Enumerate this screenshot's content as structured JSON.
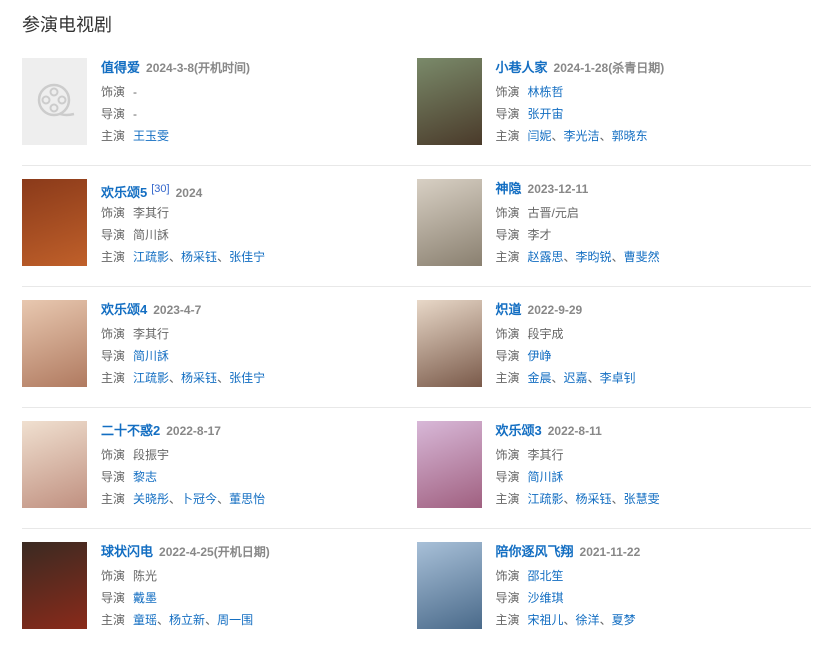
{
  "heading": "参演电视剧",
  "separator": "、",
  "items": [
    {
      "title": "值得爱",
      "date": "2024-3-8(开机时间)",
      "poster": "placeholder",
      "colors": [
        "#efefef",
        "#efefef"
      ],
      "roles": [
        {
          "label": "饰演",
          "values": [
            {
              "text": "-",
              "link": false
            }
          ]
        },
        {
          "label": "导演",
          "values": [
            {
              "text": "-",
              "link": false
            }
          ]
        },
        {
          "label": "主演",
          "values": [
            {
              "text": "王玉雯",
              "link": true
            }
          ]
        }
      ]
    },
    {
      "title": "小巷人家",
      "date": "2024-1-28(杀青日期)",
      "colors": [
        "#7a8a6a",
        "#4a3a2a"
      ],
      "roles": [
        {
          "label": "饰演",
          "values": [
            {
              "text": "林栋哲",
              "link": true
            }
          ]
        },
        {
          "label": "导演",
          "values": [
            {
              "text": "张开宙",
              "link": true
            }
          ]
        },
        {
          "label": "主演",
          "values": [
            {
              "text": "闫妮",
              "link": true
            },
            {
              "text": "李光洁",
              "link": true
            },
            {
              "text": "郭晓东",
              "link": true
            }
          ]
        }
      ]
    },
    {
      "title": "欢乐颂5",
      "sup": "[30]",
      "date": "2024",
      "colors": [
        "#8a3a1a",
        "#c0602a"
      ],
      "roles": [
        {
          "label": "饰演",
          "values": [
            {
              "text": "李其行",
              "link": false
            }
          ]
        },
        {
          "label": "导演",
          "values": [
            {
              "text": "简川訸",
              "link": false
            }
          ]
        },
        {
          "label": "主演",
          "values": [
            {
              "text": "江疏影",
              "link": true
            },
            {
              "text": "杨采钰",
              "link": true
            },
            {
              "text": "张佳宁",
              "link": true
            }
          ]
        }
      ]
    },
    {
      "title": "神隐",
      "date": "2023-12-11",
      "colors": [
        "#d8d0c4",
        "#8a8070"
      ],
      "roles": [
        {
          "label": "饰演",
          "values": [
            {
              "text": "古晋/元启",
              "link": false
            }
          ]
        },
        {
          "label": "导演",
          "values": [
            {
              "text": "李才",
              "link": false
            }
          ]
        },
        {
          "label": "主演",
          "values": [
            {
              "text": "赵露思",
              "link": true
            },
            {
              "text": "李昀锐",
              "link": true
            },
            {
              "text": "曹斐然",
              "link": true
            }
          ]
        }
      ]
    },
    {
      "title": "欢乐颂4",
      "date": "2023-4-7",
      "colors": [
        "#e8c8b0",
        "#b07a60"
      ],
      "roles": [
        {
          "label": "饰演",
          "values": [
            {
              "text": "李其行",
              "link": false
            }
          ]
        },
        {
          "label": "导演",
          "values": [
            {
              "text": "简川訸",
              "link": true
            }
          ]
        },
        {
          "label": "主演",
          "values": [
            {
              "text": "江疏影",
              "link": true
            },
            {
              "text": "杨采钰",
              "link": true
            },
            {
              "text": "张佳宁",
              "link": true
            }
          ]
        }
      ]
    },
    {
      "title": "炽道",
      "date": "2022-9-29",
      "colors": [
        "#e8d8c8",
        "#7a5a4a"
      ],
      "roles": [
        {
          "label": "饰演",
          "values": [
            {
              "text": "段宇成",
              "link": false
            }
          ]
        },
        {
          "label": "导演",
          "values": [
            {
              "text": "伊峥",
              "link": true
            }
          ]
        },
        {
          "label": "主演",
          "values": [
            {
              "text": "金晨",
              "link": true
            },
            {
              "text": "迟嘉",
              "link": true
            },
            {
              "text": "李卓钊",
              "link": true
            }
          ]
        }
      ]
    },
    {
      "title": "二十不惑2",
      "date": "2022-8-17",
      "colors": [
        "#f0e0d0",
        "#c09080"
      ],
      "roles": [
        {
          "label": "饰演",
          "values": [
            {
              "text": "段振宇",
              "link": false
            }
          ]
        },
        {
          "label": "导演",
          "values": [
            {
              "text": "黎志",
              "link": true
            }
          ]
        },
        {
          "label": "主演",
          "values": [
            {
              "text": "关晓彤",
              "link": true
            },
            {
              "text": "卜冠今",
              "link": true
            },
            {
              "text": "董思怡",
              "link": true
            }
          ]
        }
      ]
    },
    {
      "title": "欢乐颂3",
      "date": "2022-8-11",
      "colors": [
        "#d8b8d8",
        "#a06080"
      ],
      "roles": [
        {
          "label": "饰演",
          "values": [
            {
              "text": "李其行",
              "link": false
            }
          ]
        },
        {
          "label": "导演",
          "values": [
            {
              "text": "简川訸",
              "link": true
            }
          ]
        },
        {
          "label": "主演",
          "values": [
            {
              "text": "江疏影",
              "link": true
            },
            {
              "text": "杨采钰",
              "link": true
            },
            {
              "text": "张慧雯",
              "link": true
            }
          ]
        }
      ]
    },
    {
      "title": "球状闪电",
      "date": "2022-4-25(开机日期)",
      "colors": [
        "#3a2a22",
        "#8a2a1a"
      ],
      "roles": [
        {
          "label": "饰演",
          "values": [
            {
              "text": "陈光",
              "link": false
            }
          ]
        },
        {
          "label": "导演",
          "values": [
            {
              "text": "戴墨",
              "link": true
            }
          ]
        },
        {
          "label": "主演",
          "values": [
            {
              "text": "童瑶",
              "link": true
            },
            {
              "text": "杨立新",
              "link": true
            },
            {
              "text": "周一围",
              "link": true
            }
          ]
        }
      ]
    },
    {
      "title": "陪你逐风飞翔",
      "date": "2021-11-22",
      "colors": [
        "#a8c0d8",
        "#4a6a8a"
      ],
      "roles": [
        {
          "label": "饰演",
          "values": [
            {
              "text": "邵北笙",
              "link": true
            }
          ]
        },
        {
          "label": "导演",
          "values": [
            {
              "text": "沙维琪",
              "link": true
            }
          ]
        },
        {
          "label": "主演",
          "values": [
            {
              "text": "宋祖儿",
              "link": true
            },
            {
              "text": "徐洋",
              "link": true
            },
            {
              "text": "夏梦",
              "link": true
            }
          ]
        }
      ]
    }
  ]
}
